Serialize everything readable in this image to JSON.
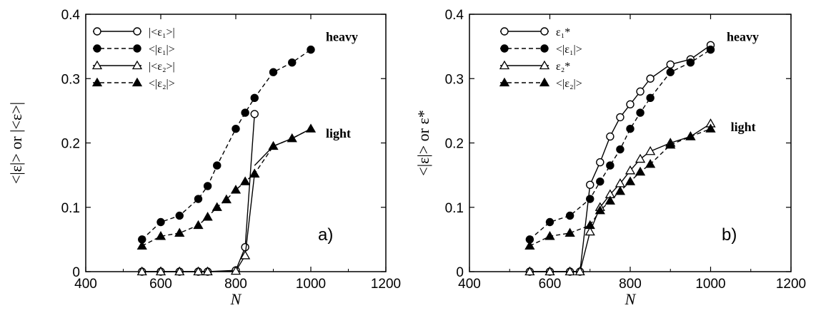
{
  "colors": {
    "ink": "#000000",
    "background": "#ffffff"
  },
  "chart_data": [
    {
      "type": "line",
      "panel_label": "a)",
      "xlabel": "N",
      "ylabel": "<|ε|>  or |<ε>|",
      "xlim": [
        400,
        1200
      ],
      "ylim": [
        0,
        0.4
      ],
      "xticks": [
        "400",
        "600",
        "800",
        "1000",
        "1200"
      ],
      "yticks": [
        "0",
        "0.1",
        "0.2",
        "0.3",
        "0.4"
      ],
      "grid": false,
      "legend_position": "top-left",
      "annotations": [
        {
          "text": "heavy",
          "x": 1040,
          "y": 0.365
        },
        {
          "text": "light",
          "x": 1040,
          "y": 0.215
        }
      ],
      "series": [
        {
          "name": "|<ε₁>|",
          "marker": "circle-open",
          "line": "solid",
          "x": [
            550,
            600,
            650,
            700,
            725,
            800,
            825,
            850
          ],
          "y": [
            0,
            0,
            0,
            0,
            0,
            0.002,
            0.038,
            0.245
          ]
        },
        {
          "name": "<|ε₁|>",
          "marker": "circle-filled",
          "line": "dashed",
          "x": [
            550,
            600,
            650,
            700,
            725,
            750,
            800,
            825,
            850,
            900,
            950,
            1000
          ],
          "y": [
            0.05,
            0.077,
            0.087,
            0.113,
            0.133,
            0.165,
            0.222,
            0.247,
            0.27,
            0.31,
            0.325,
            0.345
          ]
        },
        {
          "name": "|<ε₂>|",
          "marker": "triangle-open",
          "line": "solid",
          "x": [
            550,
            600,
            650,
            700,
            725,
            800,
            825,
            850
          ],
          "y": [
            0,
            0,
            0,
            0,
            0,
            0.001,
            0.025,
            0.152
          ]
        },
        {
          "name": "<|ε₂|>",
          "marker": "triangle-filled",
          "line": "dashed",
          "x": [
            550,
            600,
            650,
            700,
            725,
            750,
            775,
            800,
            825,
            850,
            900,
            950,
            1000
          ],
          "y": [
            0.04,
            0.055,
            0.06,
            0.072,
            0.085,
            0.1,
            0.112,
            0.127,
            0.14,
            0.152,
            0.195,
            0.207,
            0.222
          ]
        },
        {
          "name": "",
          "marker": "none",
          "line": "solid",
          "x": [
            850,
            900,
            950,
            1000
          ],
          "y": [
            0.165,
            0.195,
            0.207,
            0.222
          ]
        }
      ]
    },
    {
      "type": "line",
      "panel_label": "b)",
      "xlabel": "N",
      "ylabel": "<|ε|>  or  ε*",
      "xlim": [
        400,
        1200
      ],
      "ylim": [
        0,
        0.4
      ],
      "xticks": [
        "400",
        "600",
        "800",
        "1000",
        "1200"
      ],
      "yticks": [
        "0",
        "0.1",
        "0.2",
        "0.3",
        "0.4"
      ],
      "grid": false,
      "legend_position": "top-left",
      "annotations": [
        {
          "text": "heavy",
          "x": 1040,
          "y": 0.365
        },
        {
          "text": "light",
          "x": 1050,
          "y": 0.225
        }
      ],
      "series": [
        {
          "name": "ε₁*",
          "marker": "circle-open",
          "line": "solid",
          "x": [
            550,
            600,
            650,
            675,
            700,
            725,
            750,
            775,
            800,
            825,
            850,
            900,
            950,
            1000
          ],
          "y": [
            0,
            0,
            0,
            0,
            0.135,
            0.17,
            0.21,
            0.24,
            0.26,
            0.28,
            0.3,
            0.322,
            0.33,
            0.352
          ]
        },
        {
          "name": "<|ε₁|>",
          "marker": "circle-filled",
          "line": "dashed",
          "x": [
            550,
            600,
            650,
            700,
            725,
            750,
            775,
            800,
            825,
            850,
            900,
            950,
            1000
          ],
          "y": [
            0.05,
            0.077,
            0.087,
            0.113,
            0.14,
            0.165,
            0.19,
            0.222,
            0.247,
            0.27,
            0.31,
            0.325,
            0.345
          ]
        },
        {
          "name": "ε₂*",
          "marker": "triangle-open",
          "line": "solid",
          "x": [
            550,
            600,
            650,
            675,
            700,
            725,
            750,
            775,
            800,
            825,
            850,
            900,
            950,
            1000
          ],
          "y": [
            0,
            0,
            0,
            0,
            0.062,
            0.1,
            0.12,
            0.137,
            0.157,
            0.175,
            0.187,
            0.2,
            0.21,
            0.23
          ]
        },
        {
          "name": "<|ε₂|>",
          "marker": "triangle-filled",
          "line": "dashed",
          "x": [
            550,
            600,
            650,
            700,
            725,
            750,
            775,
            800,
            825,
            850,
            900,
            950,
            1000
          ],
          "y": [
            0.04,
            0.055,
            0.06,
            0.072,
            0.095,
            0.11,
            0.125,
            0.14,
            0.155,
            0.167,
            0.197,
            0.21,
            0.222
          ]
        }
      ]
    }
  ]
}
